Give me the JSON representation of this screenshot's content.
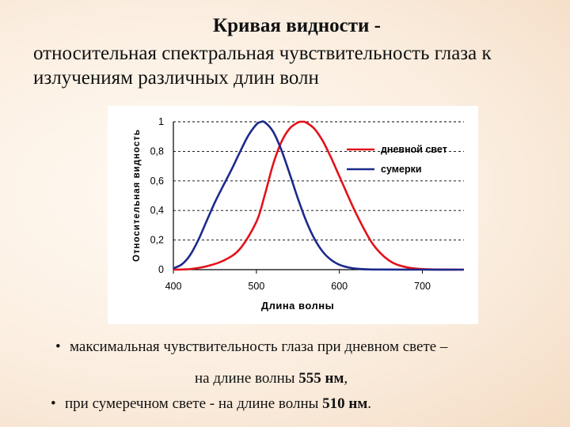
{
  "slide": {
    "title": "Кривая видности -",
    "subtitle": "относительная спектральная чувствительность глаза к излучениям различных длин волн"
  },
  "chart_data": {
    "type": "line",
    "xlabel": "Длина волны",
    "ylabel": "Относительная видность",
    "xlim": [
      400,
      750
    ],
    "ylim": [
      0,
      1
    ],
    "x_ticks": [
      "400",
      "500",
      "600",
      "700"
    ],
    "y_ticks": [
      "0",
      "0,2",
      "0,4",
      "0,6",
      "0,8",
      "1"
    ],
    "grid": "horizontal dashed",
    "legend_position": "top-right",
    "series": [
      {
        "name": "дневной свет",
        "color": "#e3121b",
        "x": [
          400,
          420,
          440,
          460,
          480,
          500,
          510,
          520,
          530,
          540,
          550,
          555,
          560,
          570,
          580,
          590,
          600,
          620,
          640,
          660,
          680,
          700,
          720,
          740,
          750
        ],
        "y": [
          0.0,
          0.004,
          0.023,
          0.06,
          0.139,
          0.323,
          0.503,
          0.71,
          0.862,
          0.954,
          0.995,
          1.0,
          0.995,
          0.952,
          0.87,
          0.757,
          0.631,
          0.381,
          0.175,
          0.061,
          0.017,
          0.004,
          0.001,
          0.0,
          0.0
        ]
      },
      {
        "name": "сумерки",
        "color": "#1c2a8c",
        "x": [
          400,
          410,
          420,
          430,
          440,
          450,
          460,
          470,
          480,
          490,
          500,
          505,
          510,
          520,
          530,
          540,
          550,
          560,
          570,
          580,
          590,
          600,
          610,
          620,
          640,
          700,
          750
        ],
        "y": [
          0.009,
          0.035,
          0.097,
          0.2,
          0.328,
          0.455,
          0.567,
          0.676,
          0.793,
          0.904,
          0.982,
          0.998,
          0.997,
          0.935,
          0.811,
          0.65,
          0.481,
          0.329,
          0.208,
          0.121,
          0.066,
          0.033,
          0.016,
          0.007,
          0.001,
          0.0,
          0.0
        ]
      }
    ]
  },
  "bullets": {
    "b1_text": "максимальная чувствительность глаза при дневном свете –",
    "b1_cont_prefix": "на длине волны ",
    "b1_value": "555 нм",
    "b1_suffix": ",",
    "b2_text": "при сумеречном свете - на длине волны ",
    "b2_value": "510 нм",
    "b2_suffix": ".",
    "marker": "•"
  }
}
